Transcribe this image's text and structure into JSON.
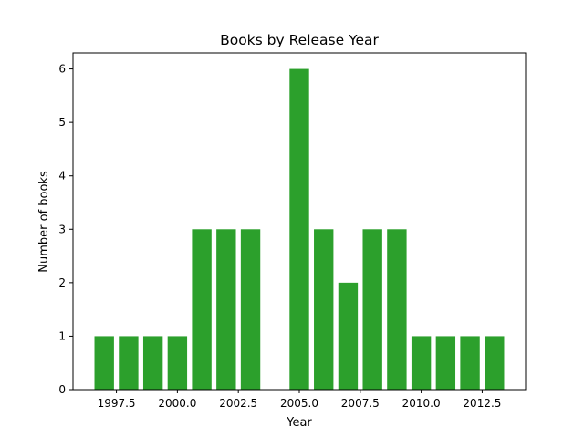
{
  "chart_data": {
    "type": "bar",
    "title": "Books by Release Year",
    "xlabel": "Year",
    "ylabel": "Number of books",
    "x": [
      1997,
      1998,
      1999,
      2000,
      2001,
      2002,
      2003,
      2005,
      2006,
      2007,
      2008,
      2009,
      2010,
      2011,
      2012,
      2013
    ],
    "values": [
      1,
      1,
      1,
      1,
      3,
      3,
      3,
      6,
      3,
      2,
      3,
      3,
      1,
      1,
      1,
      1
    ],
    "bar_color": "#2ca02c",
    "xlim": [
      1995.72,
      2014.28
    ],
    "ylim": [
      0,
      6.3
    ],
    "xticks": [
      1997.5,
      2000.0,
      2002.5,
      2005.0,
      2007.5,
      2010.0,
      2012.5
    ],
    "xtick_labels": [
      "1997.5",
      "2000.0",
      "2002.5",
      "2005.0",
      "2007.5",
      "2010.0",
      "2012.5"
    ],
    "yticks": [
      0,
      1,
      2,
      3,
      4,
      5,
      6
    ],
    "ytick_labels": [
      "0",
      "1",
      "2",
      "3",
      "4",
      "5",
      "6"
    ],
    "grid": false,
    "legend": "none"
  }
}
